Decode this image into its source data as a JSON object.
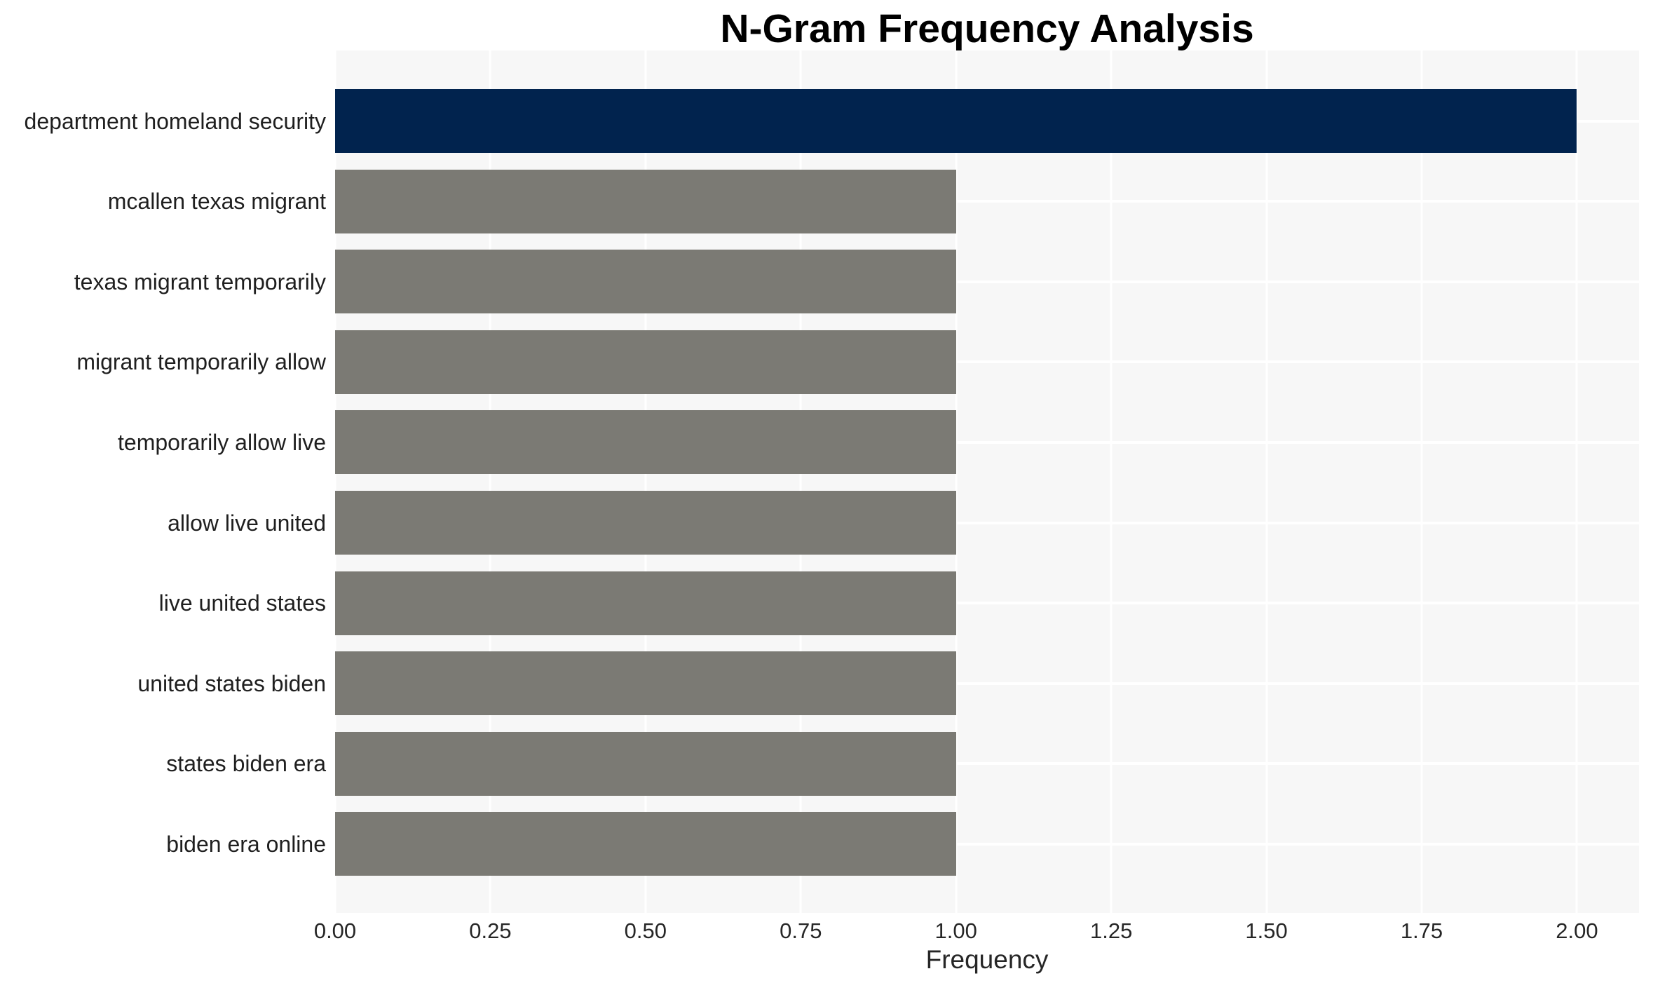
{
  "chart_data": {
    "type": "bar",
    "orientation": "horizontal",
    "title": "N-Gram Frequency Analysis",
    "xlabel": "Frequency",
    "ylabel": "",
    "categories": [
      "department homeland security",
      "mcallen texas migrant",
      "texas migrant temporarily",
      "migrant temporarily allow",
      "temporarily allow live",
      "allow live united",
      "live united states",
      "united states biden",
      "states biden era",
      "biden era online"
    ],
    "values": [
      2.0,
      1.0,
      1.0,
      1.0,
      1.0,
      1.0,
      1.0,
      1.0,
      1.0,
      1.0
    ],
    "bar_colors": [
      "#01234e",
      "#7b7a74",
      "#7b7a74",
      "#7b7a74",
      "#7b7a74",
      "#7b7a74",
      "#7b7a74",
      "#7b7a74",
      "#7b7a74",
      "#7b7a74"
    ],
    "xlim": [
      0,
      2.1
    ],
    "xticks": [
      0.0,
      0.25,
      0.5,
      0.75,
      1.0,
      1.25,
      1.5,
      1.75,
      2.0
    ],
    "xtick_labels": [
      "0.00",
      "0.25",
      "0.50",
      "0.75",
      "1.00",
      "1.25",
      "1.50",
      "1.75",
      "2.00"
    ],
    "grid": "white gridlines on light-gray panel, vertical at x ticks and horizontal at category centers",
    "legend_position": "none",
    "colors": {
      "highlight_bar": "#01234e",
      "default_bar": "#7b7a74",
      "plot_background": "#f7f7f7",
      "grid_line": "#ffffff",
      "outer_background": "#ffffff",
      "title_text": "#000000",
      "axis_text": "#262626"
    }
  }
}
